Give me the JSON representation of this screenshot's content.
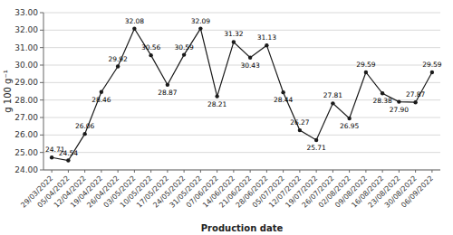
{
  "chart_data": {
    "type": "line",
    "xlabel": "Production date",
    "ylabel": "g 100 g⁻¹",
    "categories": [
      "29/03/2022",
      "05/04/2022",
      "12/04/2022",
      "19/04/2022",
      "26/04/2022",
      "03/05/2022",
      "10/05/2022",
      "17/05/2022",
      "24/05/2022",
      "31/05/2022",
      "07/06/2022",
      "14/06/2022",
      "21/06/2022",
      "28/06/2022",
      "05/07/2022",
      "12/07/2022",
      "19/07/2022",
      "26/07/2022",
      "02/08/2022",
      "09/08/2022",
      "16/08/2022",
      "23/08/2022",
      "30/08/2022",
      "06/09/2022"
    ],
    "values": [
      24.71,
      24.54,
      26.06,
      28.46,
      29.92,
      32.08,
      30.56,
      28.87,
      30.59,
      32.09,
      28.21,
      31.32,
      30.43,
      31.13,
      28.44,
      26.27,
      25.71,
      27.81,
      26.95,
      29.59,
      28.38,
      27.9,
      27.87,
      29.59
    ],
    "value_labels": [
      "24.71",
      "24.54",
      "26.06",
      "28.46",
      "29.92",
      "32.08",
      "30.56",
      "28.87",
      "30.59",
      "32.09",
      "28.21",
      "31.32",
      "30.43",
      "31.13",
      "28.44",
      "26.27",
      "25.71",
      "27.81",
      "26.95",
      "29.59",
      "28.38",
      "27.90",
      "27.87",
      "29.59"
    ],
    "color": "#1a1a1a",
    "marker": "circle",
    "ylim": [
      24.0,
      33.0
    ],
    "yticks": [
      {
        "value": 24,
        "label": "24.00"
      },
      {
        "value": 25,
        "label": "25.00"
      },
      {
        "value": 26,
        "label": "26.00"
      },
      {
        "value": 27,
        "label": "27.00"
      },
      {
        "value": 28,
        "label": "28.00"
      },
      {
        "value": 29,
        "label": "29.00"
      },
      {
        "value": 30,
        "label": "30.00"
      },
      {
        "value": 31,
        "label": "31.00"
      },
      {
        "value": 32,
        "label": "32.00"
      },
      {
        "value": 33,
        "label": "33.00"
      }
    ],
    "grid": true,
    "data_labels": true
  }
}
